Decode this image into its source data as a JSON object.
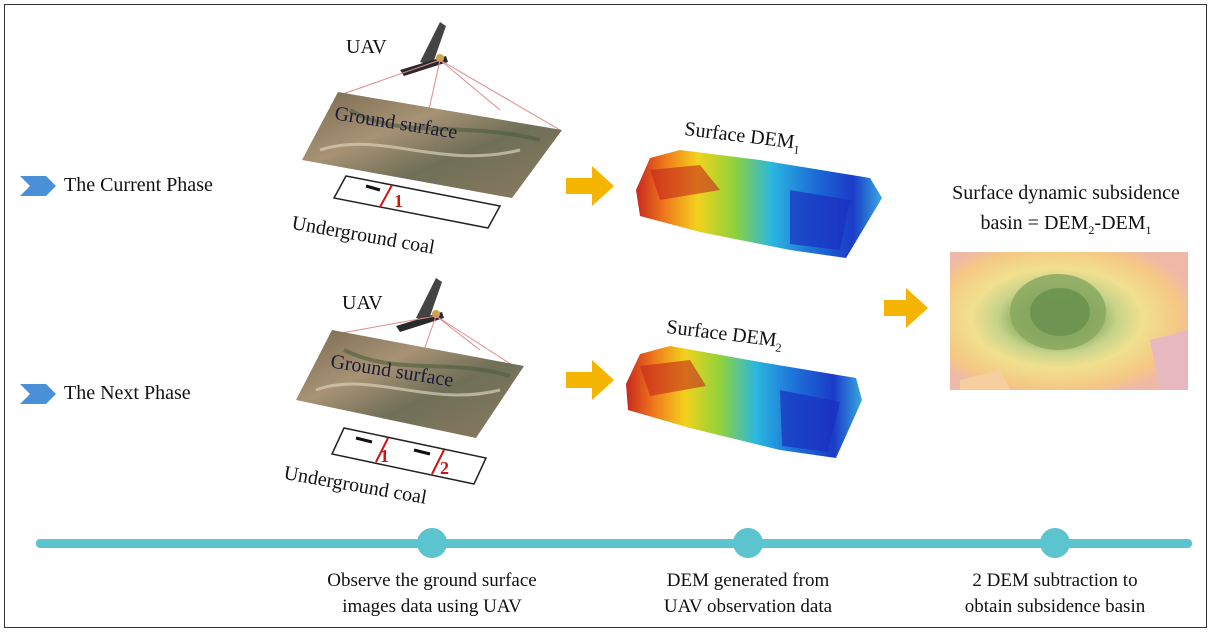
{
  "phases": {
    "current_label": "The Current Phase",
    "next_label": "The Next Phase"
  },
  "labels": {
    "uav": "UAV",
    "ground_surface": "Ground surface",
    "underground_coal": "Underground  coal",
    "panel_1": "1",
    "panel_2": "2"
  },
  "dem": {
    "prefix": "Surface DEM",
    "sub1": "1",
    "sub2": "2"
  },
  "result": {
    "line1": "Surface dynamic subsidence",
    "line2_prefix": "basin = DEM",
    "line2_sub_a": "2",
    "line2_mid": "-DEM",
    "line2_sub_b": "1"
  },
  "timeline": {
    "steps": [
      {
        "line1": "Observe the ground surface",
        "line2": "images data using UAV"
      },
      {
        "line1": "DEM generated from",
        "line2": "UAV observation data"
      },
      {
        "line1": "2 DEM subtraction to",
        "line2": "obtain subsidence basin"
      }
    ]
  },
  "colors": {
    "arrow": "#f5b400",
    "timeline": "#5bc4cf",
    "chevron": "#4a90d9"
  }
}
